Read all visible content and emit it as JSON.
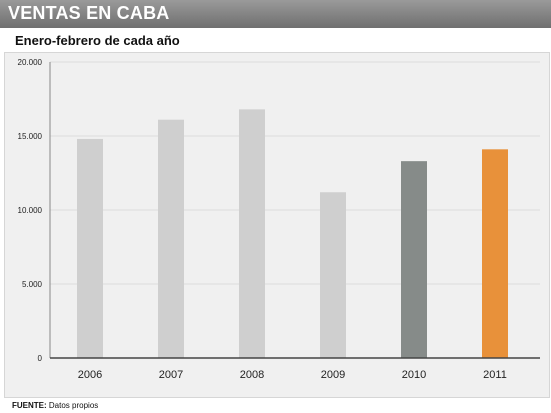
{
  "header": {
    "title": "VENTAS EN CABA",
    "subtitle": "Enero-febrero de cada año"
  },
  "source": {
    "label": "FUENTE:",
    "text": "Datos propios"
  },
  "colors": {
    "default_bar": "#cfcfcf",
    "bar_2010": "#868b89",
    "bar_2011": "#e8913a"
  },
  "chart_data": {
    "type": "bar",
    "title": "",
    "xlabel": "",
    "ylabel": "",
    "categories": [
      "2006",
      "2007",
      "2008",
      "2009",
      "2010",
      "2011"
    ],
    "values": [
      14800,
      16100,
      16800,
      11200,
      13300,
      14100
    ],
    "bar_colors": [
      "#cfcfcf",
      "#cfcfcf",
      "#cfcfcf",
      "#cfcfcf",
      "#868b89",
      "#e8913a"
    ],
    "ylim": [
      0,
      20000
    ],
    "yticks": [
      0,
      5000,
      10000,
      15000,
      20000
    ],
    "ytick_labels": [
      "0",
      "5.000",
      "10.000",
      "15.000",
      "20.000"
    ],
    "grid": true,
    "legend": "none"
  }
}
